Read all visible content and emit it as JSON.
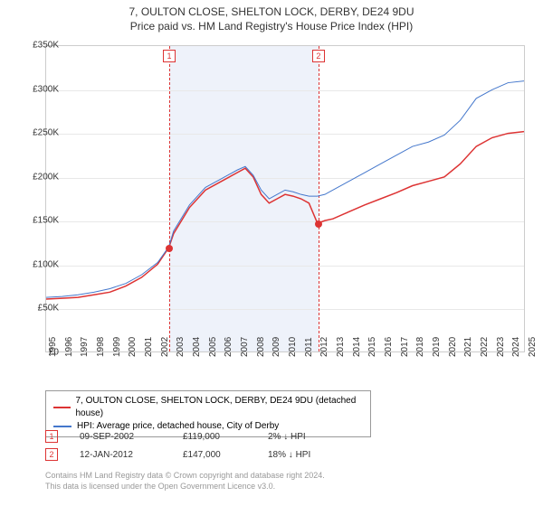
{
  "titles": {
    "main": "7, OULTON CLOSE, SHELTON LOCK, DERBY, DE24 9DU",
    "sub": "Price paid vs. HM Land Registry's House Price Index (HPI)"
  },
  "chart": {
    "type": "line",
    "background_color": "#ffffff",
    "grid_color": "#e8e8e8",
    "border_color": "#cccccc",
    "y": {
      "min": 0,
      "max": 350000,
      "ticks": [
        0,
        50000,
        100000,
        150000,
        200000,
        250000,
        300000,
        350000
      ],
      "labels": [
        "£0",
        "£50K",
        "£100K",
        "£150K",
        "£200K",
        "£250K",
        "£300K",
        "£350K"
      ],
      "label_fontsize": 10
    },
    "x": {
      "min": 1995,
      "max": 2025,
      "ticks": [
        1995,
        1996,
        1997,
        1998,
        1999,
        2000,
        2001,
        2002,
        2003,
        2004,
        2005,
        2006,
        2007,
        2008,
        2009,
        2010,
        2011,
        2012,
        2013,
        2014,
        2015,
        2016,
        2017,
        2018,
        2019,
        2020,
        2021,
        2022,
        2023,
        2024,
        2025
      ],
      "label_fontsize": 10
    },
    "shade": {
      "start_year": 2002.7,
      "end_year": 2012.03,
      "color": "#eef2fa"
    },
    "vlines": [
      {
        "year": 2002.7,
        "color": "#dd3333"
      },
      {
        "year": 2012.03,
        "color": "#dd3333"
      }
    ],
    "marker_boxes": [
      {
        "label": "1",
        "year": 2002.7
      },
      {
        "label": "2",
        "year": 2012.03
      }
    ],
    "marker_dots": [
      {
        "year": 2002.7,
        "value": 119000
      },
      {
        "year": 2012.03,
        "value": 147000
      }
    ],
    "series": [
      {
        "name": "price_paid",
        "color": "#dd3333",
        "width": 1.5,
        "points": [
          [
            1995,
            60000
          ],
          [
            1996,
            61000
          ],
          [
            1997,
            62000
          ],
          [
            1998,
            65000
          ],
          [
            1999,
            68000
          ],
          [
            2000,
            75000
          ],
          [
            2001,
            85000
          ],
          [
            2002,
            100000
          ],
          [
            2002.7,
            119000
          ],
          [
            2003,
            135000
          ],
          [
            2004,
            165000
          ],
          [
            2005,
            185000
          ],
          [
            2006,
            195000
          ],
          [
            2007,
            205000
          ],
          [
            2007.5,
            210000
          ],
          [
            2008,
            200000
          ],
          [
            2008.5,
            180000
          ],
          [
            2009,
            170000
          ],
          [
            2009.5,
            175000
          ],
          [
            2010,
            180000
          ],
          [
            2010.5,
            178000
          ],
          [
            2011,
            175000
          ],
          [
            2011.5,
            170000
          ],
          [
            2012.03,
            147000
          ],
          [
            2012.5,
            150000
          ],
          [
            2013,
            152000
          ],
          [
            2014,
            160000
          ],
          [
            2015,
            168000
          ],
          [
            2016,
            175000
          ],
          [
            2017,
            182000
          ],
          [
            2018,
            190000
          ],
          [
            2019,
            195000
          ],
          [
            2020,
            200000
          ],
          [
            2021,
            215000
          ],
          [
            2022,
            235000
          ],
          [
            2023,
            245000
          ],
          [
            2024,
            250000
          ],
          [
            2025,
            252000
          ]
        ]
      },
      {
        "name": "hpi",
        "color": "#4477cc",
        "width": 1,
        "points": [
          [
            1995,
            62000
          ],
          [
            1996,
            63000
          ],
          [
            1997,
            65000
          ],
          [
            1998,
            68000
          ],
          [
            1999,
            72000
          ],
          [
            2000,
            78000
          ],
          [
            2001,
            88000
          ],
          [
            2002,
            102000
          ],
          [
            2002.7,
            120000
          ],
          [
            2003,
            138000
          ],
          [
            2004,
            168000
          ],
          [
            2005,
            188000
          ],
          [
            2006,
            198000
          ],
          [
            2007,
            208000
          ],
          [
            2007.5,
            212000
          ],
          [
            2008,
            202000
          ],
          [
            2008.5,
            185000
          ],
          [
            2009,
            175000
          ],
          [
            2009.5,
            180000
          ],
          [
            2010,
            185000
          ],
          [
            2010.5,
            183000
          ],
          [
            2011,
            180000
          ],
          [
            2011.5,
            178000
          ],
          [
            2012.03,
            178000
          ],
          [
            2012.5,
            180000
          ],
          [
            2013,
            185000
          ],
          [
            2014,
            195000
          ],
          [
            2015,
            205000
          ],
          [
            2016,
            215000
          ],
          [
            2017,
            225000
          ],
          [
            2018,
            235000
          ],
          [
            2019,
            240000
          ],
          [
            2020,
            248000
          ],
          [
            2021,
            265000
          ],
          [
            2022,
            290000
          ],
          [
            2023,
            300000
          ],
          [
            2024,
            308000
          ],
          [
            2025,
            310000
          ]
        ]
      }
    ]
  },
  "legend": {
    "border_color": "#999999",
    "fontsize": 10,
    "items": [
      {
        "color": "#dd3333",
        "label": "7, OULTON CLOSE, SHELTON LOCK, DERBY, DE24 9DU (detached house)"
      },
      {
        "color": "#4477cc",
        "label": "HPI: Average price, detached house, City of Derby"
      }
    ]
  },
  "transactions": [
    {
      "marker": "1",
      "date": "09-SEP-2002",
      "price": "£119,000",
      "diff": "2% ↓ HPI"
    },
    {
      "marker": "2",
      "date": "12-JAN-2012",
      "price": "£147,000",
      "diff": "18% ↓ HPI"
    }
  ],
  "footer": {
    "line1": "Contains HM Land Registry data © Crown copyright and database right 2024.",
    "line2": "This data is licensed under the Open Government Licence v3.0."
  }
}
